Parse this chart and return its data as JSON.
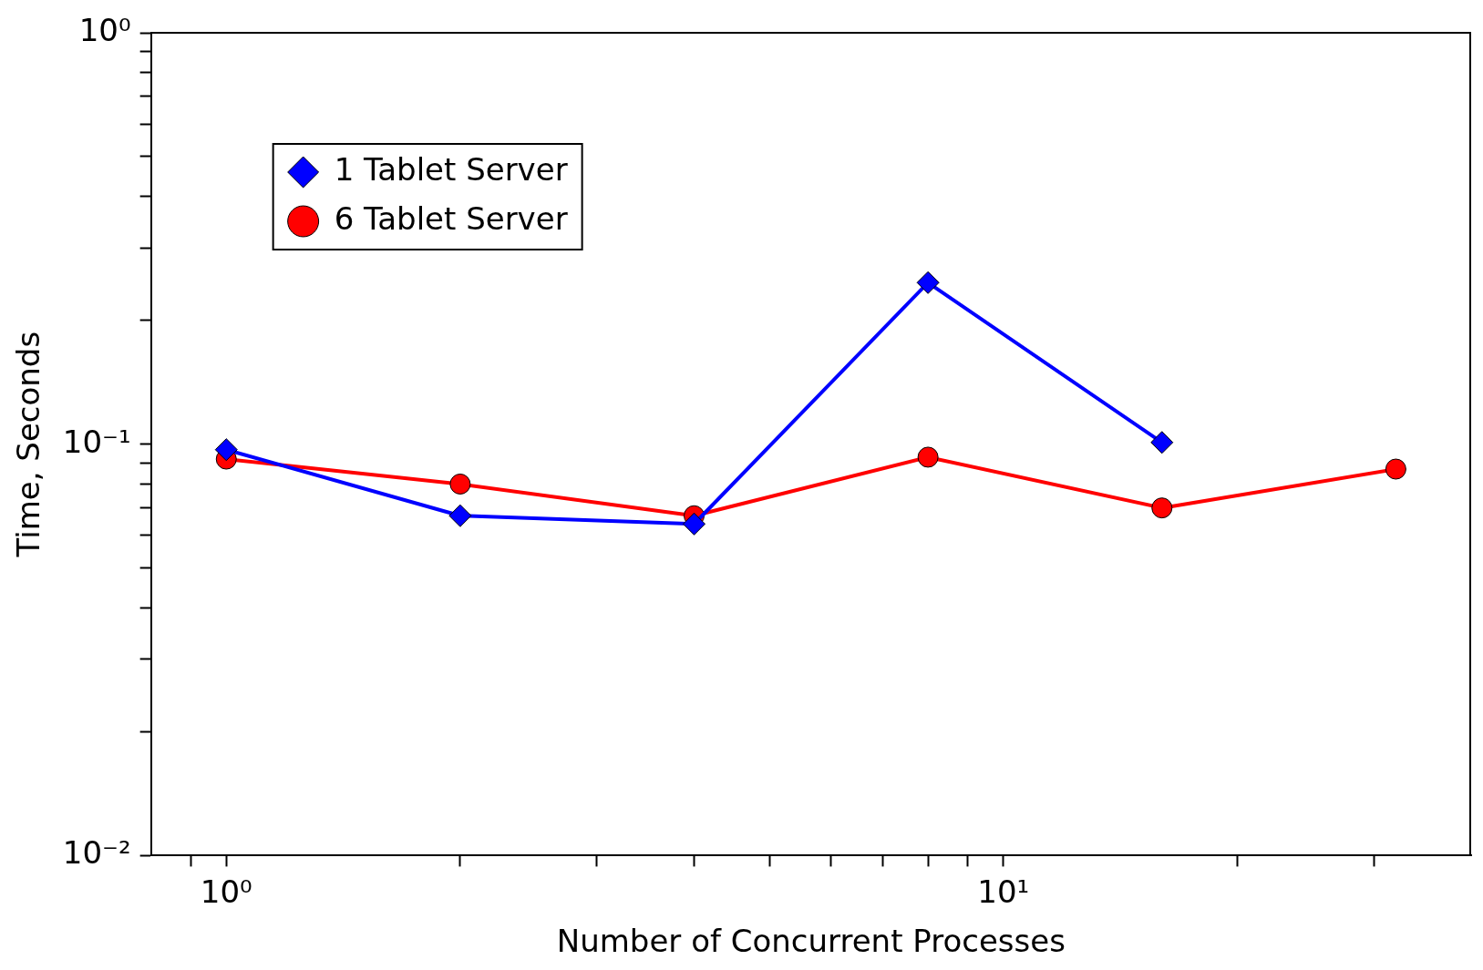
{
  "chart_data": {
    "type": "line",
    "xlabel": "Number of Concurrent Processes",
    "ylabel": "Time, Seconds",
    "log": "xy",
    "grid": false,
    "legend": "top left",
    "line_style": "solid",
    "xlim": [
      0.8,
      40
    ],
    "ylim": [
      0.01,
      1
    ],
    "xticks": [
      {
        "value": 0.9,
        "label": null
      },
      {
        "value": 1,
        "label": "10⁰"
      },
      {
        "value": 2,
        "label": null
      },
      {
        "value": 3,
        "label": null
      },
      {
        "value": 4,
        "label": null
      },
      {
        "value": 5,
        "label": null
      },
      {
        "value": 6,
        "label": null
      },
      {
        "value": 7,
        "label": null
      },
      {
        "value": 8,
        "label": null
      },
      {
        "value": 9,
        "label": null
      },
      {
        "value": 10,
        "label": "10¹"
      },
      {
        "value": 20,
        "label": null
      },
      {
        "value": 30,
        "label": null
      }
    ],
    "yticks": [
      {
        "value": 0.01,
        "label": "10⁻²"
      },
      {
        "value": 0.02,
        "label": null
      },
      {
        "value": 0.03,
        "label": null
      },
      {
        "value": 0.04,
        "label": null
      },
      {
        "value": 0.05,
        "label": null
      },
      {
        "value": 0.06,
        "label": null
      },
      {
        "value": 0.07,
        "label": null
      },
      {
        "value": 0.08,
        "label": null
      },
      {
        "value": 0.09,
        "label": null
      },
      {
        "value": 0.1,
        "label": "10⁻¹"
      },
      {
        "value": 0.2,
        "label": null
      },
      {
        "value": 0.3,
        "label": null
      },
      {
        "value": 0.4,
        "label": null
      },
      {
        "value": 0.5,
        "label": null
      },
      {
        "value": 0.6,
        "label": null
      },
      {
        "value": 0.7,
        "label": null
      },
      {
        "value": 0.8,
        "label": null
      },
      {
        "value": 0.9,
        "label": null
      },
      {
        "value": 1,
        "label": "10⁰"
      }
    ],
    "series": [
      {
        "name": "1 Tablet Server",
        "color": "#0000ff",
        "marker": "diamond",
        "x": [
          1,
          2,
          4,
          8,
          16
        ],
        "values": [
          0.097,
          0.067,
          0.064,
          0.247,
          0.101
        ]
      },
      {
        "name": "6 Tablet Server",
        "color": "#ff0000",
        "marker": "circle",
        "x": [
          1,
          2,
          4,
          8,
          16,
          32
        ],
        "values": [
          0.092,
          0.08,
          0.067,
          0.093,
          0.07,
          0.087
        ]
      }
    ]
  }
}
